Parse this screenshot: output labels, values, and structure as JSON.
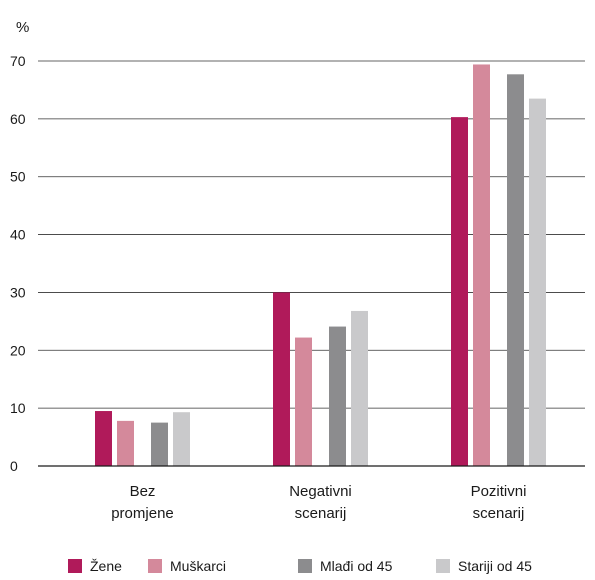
{
  "chart_data": {
    "type": "bar",
    "unit_label": "%",
    "categories": [
      [
        "Bez",
        "promjene"
      ],
      [
        "Negativni",
        "scenarij"
      ],
      [
        "Pozitivni",
        "scenarij"
      ]
    ],
    "series": [
      {
        "name": "Žene",
        "color": "#b01a5a",
        "values": [
          9.5,
          30.0,
          60.3
        ]
      },
      {
        "name": "Muškarci",
        "color": "#d4899b",
        "values": [
          7.8,
          22.2,
          69.4
        ]
      },
      {
        "name": "Mlađi od 45",
        "color": "#8c8c8e",
        "values": [
          7.5,
          24.1,
          67.7
        ]
      },
      {
        "name": "Stariji od 45",
        "color": "#c9c9cb",
        "values": [
          9.3,
          26.8,
          63.5
        ]
      }
    ],
    "ylim": [
      0,
      70
    ],
    "yticks": [
      0,
      10,
      20,
      30,
      40,
      50,
      60,
      70
    ],
    "grid": true,
    "legend_position": "bottom"
  }
}
